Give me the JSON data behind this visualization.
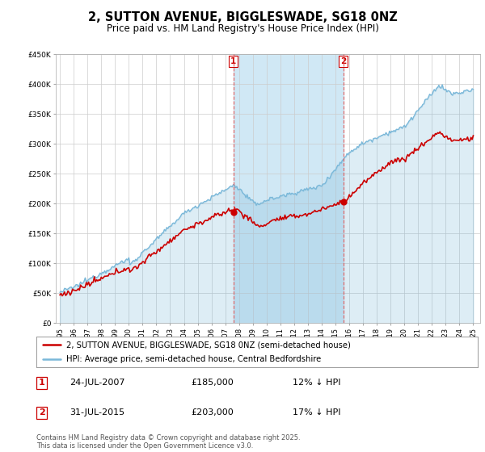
{
  "title": "2, SUTTON AVENUE, BIGGLESWADE, SG18 0NZ",
  "subtitle": "Price paid vs. HM Land Registry's House Price Index (HPI)",
  "ylim": [
    0,
    450000
  ],
  "yticks": [
    0,
    50000,
    100000,
    150000,
    200000,
    250000,
    300000,
    350000,
    400000,
    450000
  ],
  "sale1_year": 2007.583,
  "sale1_price": 185000,
  "sale2_year": 2015.583,
  "sale2_price": 203000,
  "hpi_color": "#7ab8d9",
  "price_color": "#cc0000",
  "dashed_line_color": "#cc0000",
  "span_color": "#d0e8f5",
  "legend_line1": "2, SUTTON AVENUE, BIGGLESWADE, SG18 0NZ (semi-detached house)",
  "legend_line2": "HPI: Average price, semi-detached house, Central Bedfordshire",
  "annotation1_label": "1",
  "annotation1_date": "24-JUL-2007",
  "annotation1_price": "£185,000",
  "annotation1_hpi": "12% ↓ HPI",
  "annotation2_label": "2",
  "annotation2_date": "31-JUL-2015",
  "annotation2_price": "£203,000",
  "annotation2_hpi": "17% ↓ HPI",
  "footnote": "Contains HM Land Registry data © Crown copyright and database right 2025.\nThis data is licensed under the Open Government Licence v3.0.",
  "background_color": "#ffffff",
  "plot_bg_color": "#ffffff"
}
